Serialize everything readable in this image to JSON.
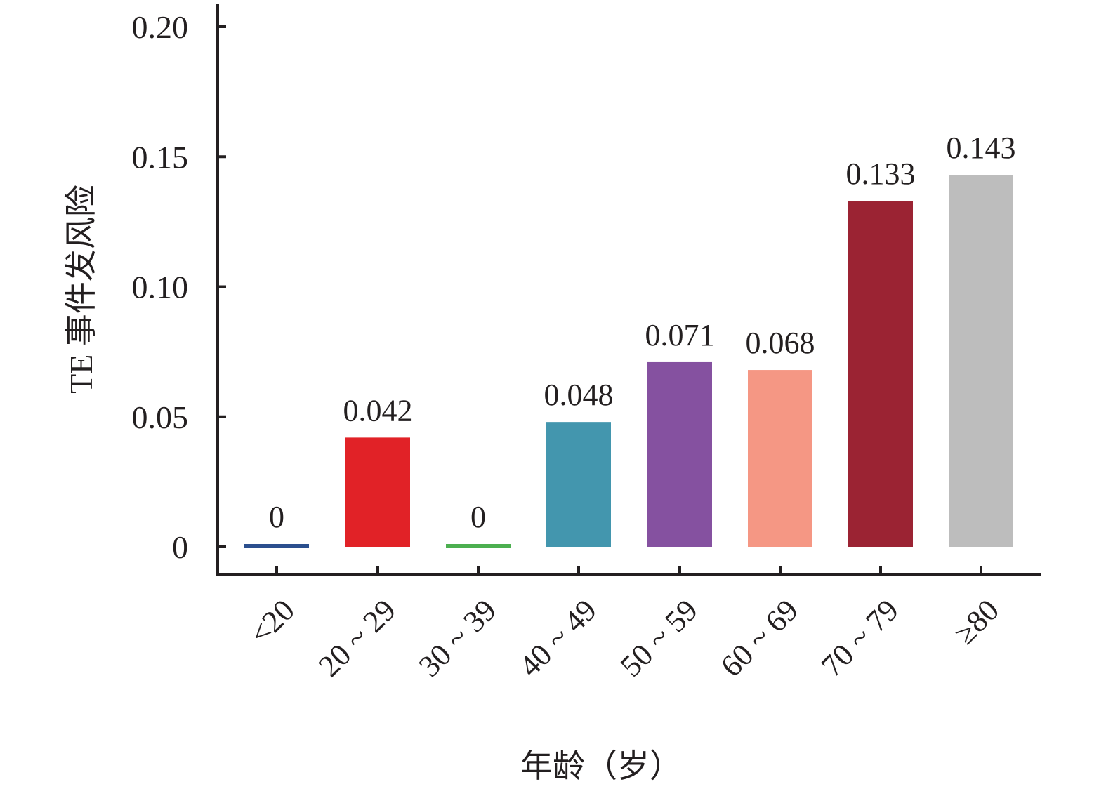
{
  "chart_data": {
    "type": "bar",
    "categories": [
      "<20",
      "20 ~ 29",
      "30 ~ 39",
      "40 ~ 49",
      "50 ~ 59",
      "60 ~ 69",
      "70 ~ 79",
      "≥80"
    ],
    "values": [
      0,
      0.042,
      0,
      0.048,
      0.071,
      0.068,
      0.133,
      0.143
    ],
    "data_labels": [
      "0",
      "0.042",
      "0",
      "0.048",
      "0.071",
      "0.068",
      "0.133",
      "0.143"
    ],
    "colors": [
      "#2b4f8e",
      "#e12227",
      "#4caf50",
      "#4396ae",
      "#8551a0",
      "#f59784",
      "#9b2333",
      "#bdbdbd"
    ],
    "xlabel": "年龄（岁）",
    "ylabel": "TE 事件发风险",
    "ylim": [
      0,
      0.2
    ],
    "yticks": [
      0,
      0.05,
      0.1,
      0.15,
      0.2
    ],
    "ytick_labels": [
      "0",
      "0.05",
      "0.10",
      "0.15",
      "0.20"
    ],
    "grid": false,
    "legend": "none"
  }
}
